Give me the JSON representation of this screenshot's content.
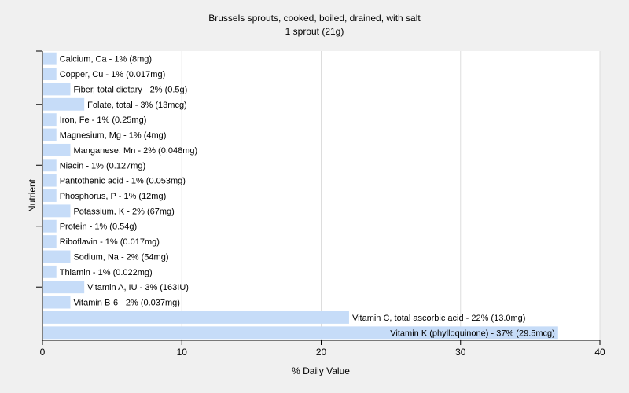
{
  "chart_data": {
    "type": "bar",
    "orientation": "horizontal",
    "title": "Brussels sprouts, cooked, boiled, drained, with salt",
    "subtitle": "1 sprout (21g)",
    "xlabel": "% Daily Value",
    "ylabel": "Nutrient",
    "xlim": [
      0,
      40
    ],
    "xticks": [
      0,
      10,
      20,
      30,
      40
    ],
    "grid": "vertical",
    "categories": [
      "Calcium, Ca",
      "Copper, Cu",
      "Fiber, total dietary",
      "Folate, total",
      "Iron, Fe",
      "Magnesium, Mg",
      "Manganese, Mn",
      "Niacin",
      "Pantothenic acid",
      "Phosphorus, P",
      "Potassium, K",
      "Protein",
      "Riboflavin",
      "Sodium, Na",
      "Thiamin",
      "Vitamin A, IU",
      "Vitamin B-6",
      "Vitamin C, total ascorbic acid",
      "Vitamin K (phylloquinone)"
    ],
    "values": [
      1,
      1,
      2,
      3,
      1,
      1,
      2,
      1,
      1,
      1,
      2,
      1,
      1,
      2,
      1,
      3,
      2,
      22,
      37
    ],
    "labels": [
      "Calcium, Ca - 1% (8mg)",
      "Copper, Cu - 1% (0.017mg)",
      "Fiber, total dietary - 2% (0.5g)",
      "Folate, total - 3% (13mcg)",
      "Iron, Fe - 1% (0.25mg)",
      "Magnesium, Mg - 1% (4mg)",
      "Manganese, Mn - 2% (0.048mg)",
      "Niacin - 1% (0.127mg)",
      "Pantothenic acid - 1% (0.053mg)",
      "Phosphorus, P - 1% (12mg)",
      "Potassium, K - 2% (67mg)",
      "Protein - 1% (0.54g)",
      "Riboflavin - 1% (0.017mg)",
      "Sodium, Na - 2% (54mg)",
      "Thiamin - 1% (0.022mg)",
      "Vitamin A, IU - 3% (163IU)",
      "Vitamin B-6 - 2% (0.037mg)",
      "Vitamin C, total ascorbic acid - 22% (13.0mg)",
      "Vitamin K (phylloquinone) - 37% (29.5mcg)"
    ],
    "colors": {
      "background": "#f0f0f0",
      "plot_background": "#ffffff",
      "bar": "#c6dcf8",
      "grid": "#dddddd",
      "axis": "#000000"
    }
  }
}
